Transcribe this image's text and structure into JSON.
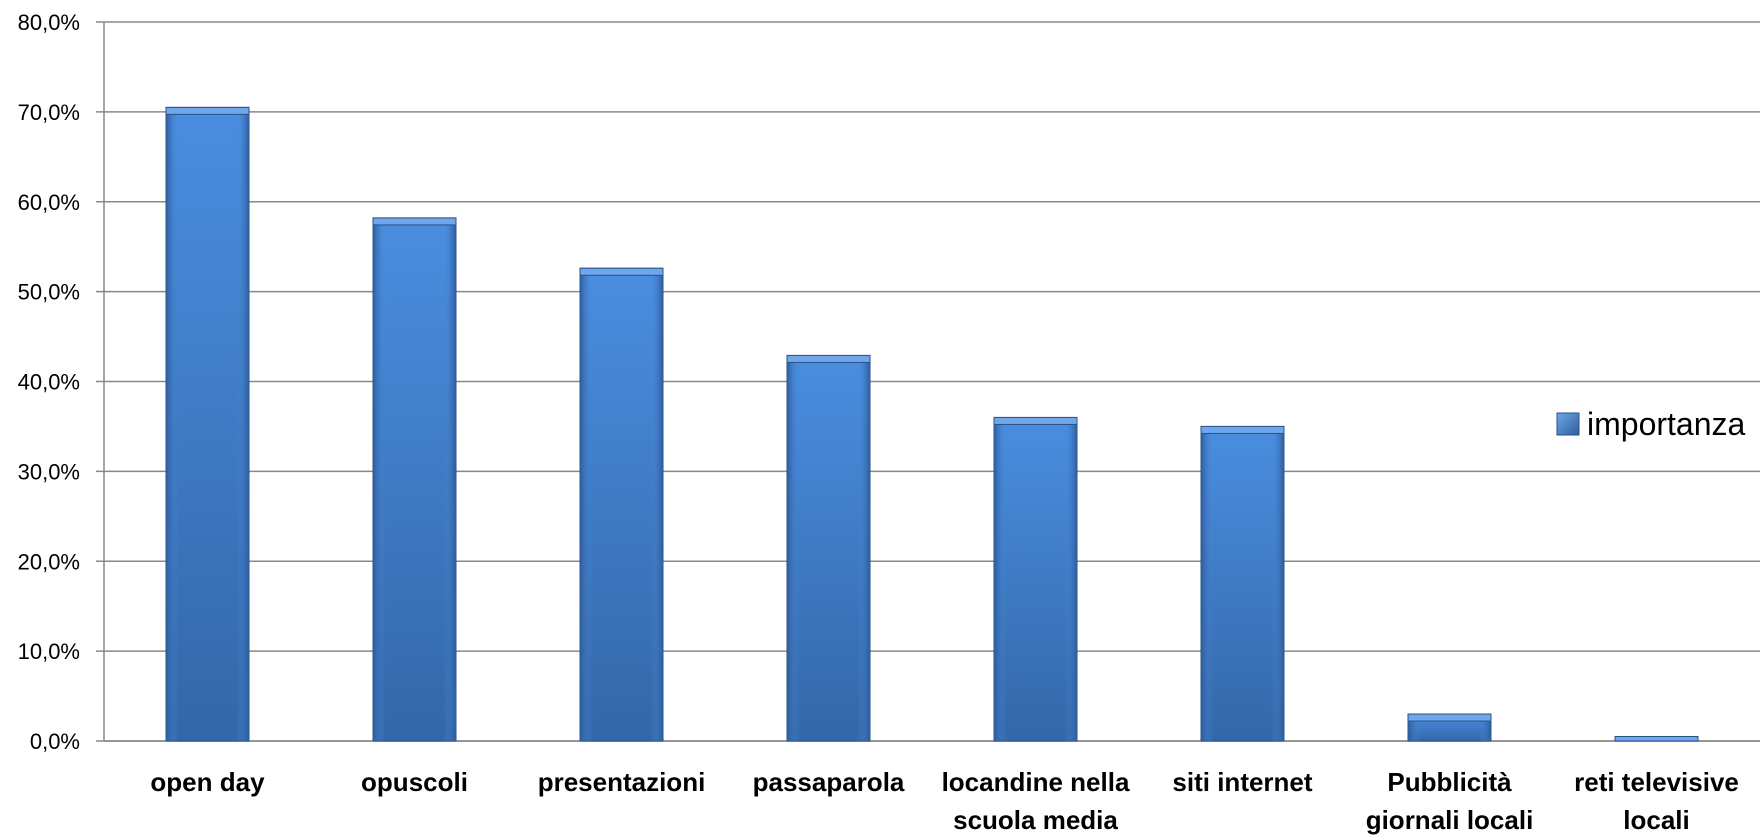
{
  "chart_data": {
    "type": "bar",
    "title": "",
    "xlabel": "",
    "ylabel": "",
    "categories": [
      [
        "open day"
      ],
      [
        "opuscoli"
      ],
      [
        "presentazioni"
      ],
      [
        "passaparola"
      ],
      [
        "locandine nella",
        "scuola media"
      ],
      [
        "siti internet"
      ],
      [
        "Pubblicità",
        "giornali locali"
      ],
      [
        "reti televisive",
        "locali"
      ]
    ],
    "series": [
      {
        "name": "importanza",
        "values": [
          70.5,
          58.2,
          52.6,
          42.9,
          36.0,
          35.0,
          3.0,
          0.5
        ]
      }
    ],
    "ylim": [
      0,
      80
    ],
    "yticks": [
      0,
      10,
      20,
      30,
      40,
      50,
      60,
      70,
      80
    ],
    "ytick_labels": [
      "0,0%",
      "10,0%",
      "20,0%",
      "30,0%",
      "40,0%",
      "50,0%",
      "60,0%",
      "70,0%",
      "80,0%"
    ],
    "grid": true,
    "legend": {
      "placement": "right",
      "entries": [
        "importanza"
      ]
    },
    "colors": {
      "bar_light": "#4a8ee0",
      "bar_dark": "#2f5f9e",
      "bar_top": "#6fa7ea",
      "grid": "#888888"
    }
  }
}
